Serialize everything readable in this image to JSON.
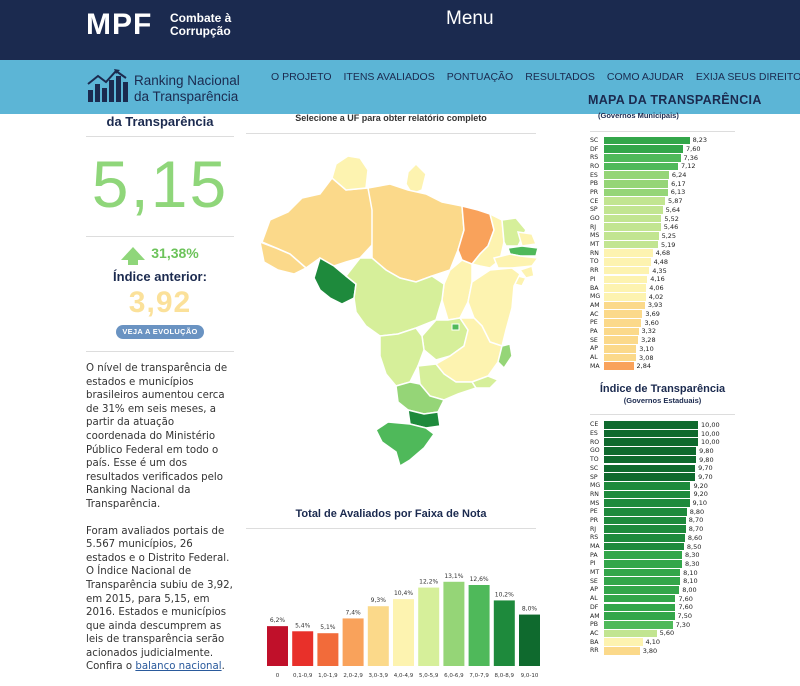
{
  "header": {
    "logo_text": "MPF",
    "logo_sub_line1": "Combate à",
    "logo_sub_line2": "Corrupção",
    "menu_label": "Menu"
  },
  "nav": {
    "brand_line1": "Ranking Nacional",
    "brand_line2": "da Transparência",
    "items": [
      "O PROJETO",
      "ITENS AVALIADOS",
      "PONTUAÇÃO",
      "RESULTADOS",
      "COMO AJUDAR",
      "EXIJA SEUS DIREITOS"
    ],
    "map_title": "MAPA DA TRANSPARÊNCIA"
  },
  "left": {
    "title": "da Transparência",
    "score": "5,15",
    "growth": "31,38%",
    "prev_label": "Índice anterior:",
    "prev_score": "3,92",
    "evolution_button": "VEJA A EVOLUÇÃO",
    "para1": "O nível de transparência de estados e municípios brasileiros aumentou cerca de 31% em seis meses, a partir da atuação coordenada do Ministério Público Federal em todo o país. Esse é um dos resultados verificados pelo Ranking Nacional da Transparência.",
    "para2": "Foram avaliados portais de 5.567 municípios, 26 estados e o Distrito Federal. O Índice Nacional de Transparência subiu de 3,92, em 2015, para 5,15, em 2016. Estados e municípios que ainda descumprem as leis de transparência serão acionados judicialmente. Confira o",
    "para2_link": "balanço nacional",
    "para2_end": "."
  },
  "center": {
    "uf_note": "Selecione a UF para obter relatório completo",
    "hist_title": "Total de Avaliados por Faixa de Nota"
  },
  "chart_data": [
    {
      "type": "bar",
      "title": "Total de Avaliados por Faixa de Nota",
      "categories": [
        "0",
        "0,1-0,9",
        "1,0-1,9",
        "2,0-2,9",
        "3,0-3,9",
        "4,0-4,9",
        "5,0-5,9",
        "6,0-6,9",
        "7,0-7,9",
        "8,0-8,9",
        "9,0-10"
      ],
      "values": [
        6.2,
        5.4,
        5.1,
        7.4,
        9.3,
        10.4,
        12.2,
        13.1,
        12.6,
        10.2,
        8.0
      ],
      "labels": [
        "6,2%",
        "5,4%",
        "5,1%",
        "7,4%",
        "9,3%",
        "10,4%",
        "12,2%",
        "13,1%",
        "12,6%",
        "10,2%",
        "8,0%"
      ],
      "colors": [
        "#c0102a",
        "#e8302a",
        "#f26b3a",
        "#f9a25b",
        "#fbd98a",
        "#fdf3b0",
        "#d6ef9a",
        "#95d577",
        "#4fb95a",
        "#1e8a3c",
        "#0f6a2e"
      ],
      "ylim": [
        0,
        14
      ]
    },
    {
      "type": "bar",
      "title": "(Governos Municipais)",
      "orientation": "horizontal",
      "categories": [
        "SC",
        "DF",
        "RS",
        "RO",
        "ES",
        "PB",
        "PR",
        "CE",
        "SP",
        "GO",
        "RJ",
        "MS",
        "MT",
        "RN",
        "TO",
        "RR",
        "PI",
        "BA",
        "MG",
        "AM",
        "AC",
        "PE",
        "PA",
        "SE",
        "AP",
        "AL",
        "MA"
      ],
      "values": [
        8.23,
        7.6,
        7.36,
        7.12,
        6.24,
        6.17,
        6.13,
        5.87,
        5.64,
        5.52,
        5.46,
        5.25,
        5.19,
        4.68,
        4.48,
        4.35,
        4.16,
        4.06,
        4.02,
        3.93,
        3.69,
        3.6,
        3.32,
        3.28,
        3.1,
        3.08,
        2.84
      ],
      "labels": [
        "8,23",
        "7,60",
        "7,36",
        "7,12",
        "6,24",
        "6,17",
        "6,13",
        "5,87",
        "5,64",
        "5,52",
        "5,46",
        "5,25",
        "5,19",
        "4,68",
        "4,48",
        "4,35",
        "4,16",
        "4,06",
        "4,02",
        "3,93",
        "3,69",
        "3,60",
        "3,32",
        "3,28",
        "3,10",
        "3,08",
        "2,84"
      ],
      "xlim": [
        0,
        10
      ]
    },
    {
      "type": "bar",
      "title": "Índice de Transparência",
      "subtitle": "(Governos Estaduais)",
      "orientation": "horizontal",
      "categories": [
        "CE",
        "ES",
        "RO",
        "GO",
        "TO",
        "SC",
        "SP",
        "MG",
        "RN",
        "MS",
        "PE",
        "PR",
        "RJ",
        "RS",
        "MA",
        "PA",
        "PI",
        "MT",
        "SE",
        "AP",
        "AL",
        "DF",
        "AM",
        "PB",
        "AC",
        "BA",
        "RR"
      ],
      "values": [
        10.0,
        10.0,
        10.0,
        9.8,
        9.8,
        9.7,
        9.7,
        9.2,
        9.2,
        9.1,
        8.8,
        8.7,
        8.7,
        8.6,
        8.5,
        8.3,
        8.3,
        8.1,
        8.1,
        8.0,
        7.6,
        7.6,
        7.5,
        7.3,
        5.6,
        4.1,
        3.8
      ],
      "labels": [
        "10,00",
        "10,00",
        "10,00",
        "9,80",
        "9,80",
        "9,70",
        "9,70",
        "9,20",
        "9,20",
        "9,10",
        "8,80",
        "8,70",
        "8,70",
        "8,60",
        "8,50",
        "8,30",
        "8,30",
        "8,10",
        "8,10",
        "8,00",
        "7,60",
        "7,60",
        "7,50",
        "7,30",
        "5,60",
        "4,10",
        "3,80"
      ],
      "xlim": [
        0,
        10
      ]
    }
  ],
  "colors": {
    "header_bg": "#1b2a4f",
    "nav_bg": "#5cb5d6",
    "score_green": "#8fd67a",
    "prev_yellow": "#fbe19a"
  }
}
